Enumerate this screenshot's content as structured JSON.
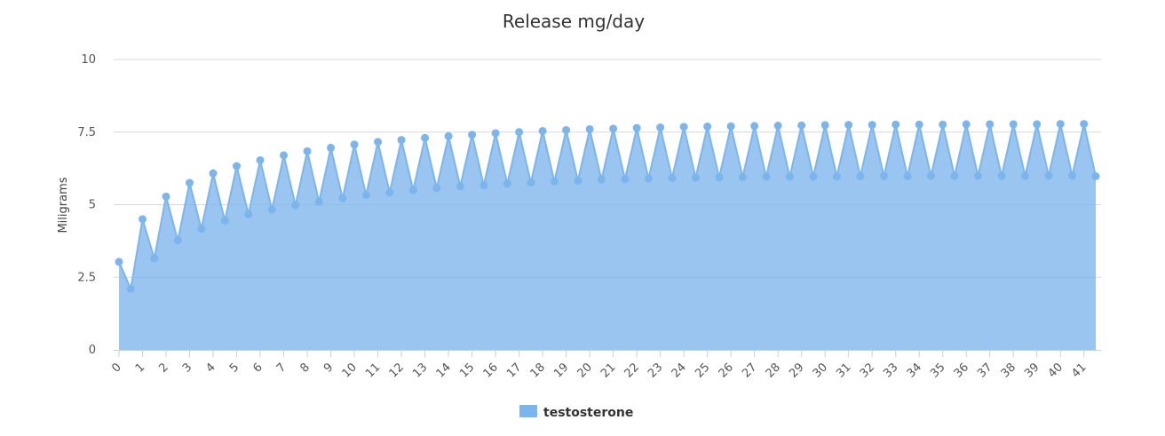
{
  "chart_data": {
    "type": "area",
    "title": "Release mg/day",
    "xlabel": "",
    "ylabel": "Miligrams",
    "ylim": [
      0,
      10
    ],
    "y_ticks": [
      "0",
      "2.5",
      "5",
      "7.5",
      "10"
    ],
    "x_tick_labels": [
      "0",
      "1",
      "2",
      "3",
      "4",
      "5",
      "6",
      "7",
      "8",
      "9",
      "10",
      "11",
      "12",
      "13",
      "14",
      "15",
      "16",
      "17",
      "18",
      "19",
      "20",
      "21",
      "22",
      "23",
      "24",
      "25",
      "26",
      "27",
      "28",
      "29",
      "30",
      "31",
      "32",
      "33",
      "34",
      "35",
      "36",
      "37",
      "38",
      "39",
      "40",
      "41"
    ],
    "grid": true,
    "legend_position": "bottom",
    "series": [
      {
        "name": "testosterone",
        "color": "#7cb5ec",
        "x": [
          0,
          0.5,
          1,
          1.5,
          2,
          2.5,
          3,
          3.5,
          4,
          4.5,
          5,
          5.5,
          6,
          6.5,
          7,
          7.5,
          8,
          8.5,
          9,
          9.5,
          10,
          10.5,
          11,
          11.5,
          12,
          12.5,
          13,
          13.5,
          14,
          14.5,
          15,
          15.5,
          16,
          16.5,
          17,
          17.5,
          18,
          18.5,
          19,
          19.5,
          20,
          20.5,
          21,
          21.5,
          22,
          22.5,
          23,
          23.5,
          24,
          24.5,
          25,
          25.5,
          26,
          26.5,
          27,
          27.5,
          28,
          28.5,
          29,
          29.5,
          30,
          30.5,
          31,
          31.5,
          32,
          32.5,
          33,
          33.5,
          34,
          34.5,
          35,
          35.5,
          36,
          36.5,
          37,
          37.5,
          38,
          38.5,
          39,
          39.5,
          40,
          40.5,
          41,
          41.5
        ],
        "values": [
          3.03,
          2.1,
          4.5,
          3.15,
          5.28,
          3.77,
          5.75,
          4.17,
          6.08,
          4.45,
          6.33,
          4.67,
          6.53,
          4.83,
          6.7,
          4.98,
          6.84,
          5.1,
          6.96,
          5.22,
          7.07,
          5.33,
          7.16,
          5.42,
          7.23,
          5.5,
          7.3,
          5.57,
          7.36,
          5.63,
          7.41,
          5.67,
          7.46,
          5.72,
          7.5,
          5.76,
          7.54,
          5.8,
          7.57,
          5.83,
          7.6,
          5.86,
          7.62,
          5.88,
          7.64,
          5.9,
          7.66,
          5.92,
          7.68,
          5.93,
          7.69,
          5.94,
          7.7,
          5.95,
          7.71,
          5.96,
          7.72,
          5.96,
          7.73,
          5.97,
          7.74,
          5.97,
          7.75,
          5.98,
          7.75,
          5.98,
          7.76,
          5.98,
          7.76,
          5.99,
          7.76,
          5.99,
          7.77,
          5.99,
          7.77,
          5.99,
          7.77,
          5.99,
          7.77,
          6.0,
          7.78,
          6.0,
          7.78,
          5.98
        ]
      }
    ]
  }
}
